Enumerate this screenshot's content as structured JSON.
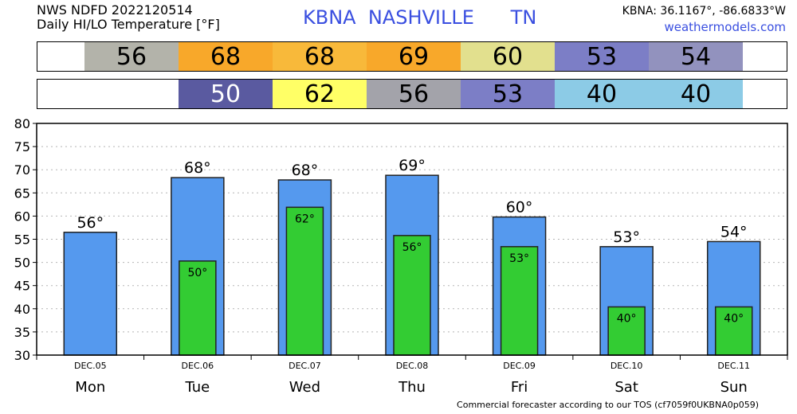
{
  "header": {
    "line1": "NWS NDFD 2022120514",
    "line2": "Daily HI/LO Temperature [°F]",
    "station": "KBNA  NASHVILLE      TN",
    "coords": "KBNA: 36.1167°, -86.6833°W",
    "site": "weathermodels.com"
  },
  "strips": {
    "hi": [
      {
        "value": "56",
        "color": "#b3b3aa",
        "text_color": "#000000"
      },
      {
        "value": "68",
        "color": "#f8a82a",
        "text_color": "#000000"
      },
      {
        "value": "68",
        "color": "#f8b93a",
        "text_color": "#000000"
      },
      {
        "value": "69",
        "color": "#f8a82a",
        "text_color": "#000000"
      },
      {
        "value": "60",
        "color": "#e2e08e",
        "text_color": "#000000"
      },
      {
        "value": "53",
        "color": "#7c7ec6",
        "text_color": "#000000"
      },
      {
        "value": "54",
        "color": "#9292be",
        "text_color": "#000000"
      }
    ],
    "lo": [
      {
        "value": "",
        "color": "#ffffff",
        "text_color": "#000000"
      },
      {
        "value": "50",
        "color": "#5a5aa0",
        "text_color": "#ffffff"
      },
      {
        "value": "62",
        "color": "#ffff66",
        "text_color": "#000000"
      },
      {
        "value": "56",
        "color": "#a3a3aa",
        "text_color": "#000000"
      },
      {
        "value": "53",
        "color": "#7c7ec6",
        "text_color": "#000000"
      },
      {
        "value": "40",
        "color": "#8ccbe6",
        "text_color": "#000000"
      },
      {
        "value": "40",
        "color": "#8ccbe6",
        "text_color": "#000000"
      }
    ]
  },
  "chart_data": {
    "type": "bar",
    "dates": [
      "DEC.05",
      "DEC.06",
      "DEC.07",
      "DEC.08",
      "DEC.09",
      "DEC.10",
      "DEC.11"
    ],
    "days": [
      "Mon",
      "Tue",
      "Wed",
      "Thu",
      "Fri",
      "Sat",
      "Sun"
    ],
    "series": [
      {
        "values": [
          56.5,
          68.3,
          67.8,
          68.8,
          59.8,
          53.4,
          54.5
        ],
        "labels": [
          "56°",
          "68°",
          "68°",
          "69°",
          "60°",
          "53°",
          "54°"
        ],
        "color": "#5599ee"
      },
      {
        "values": [
          null,
          50.3,
          61.9,
          55.8,
          53.4,
          40.4,
          40.4
        ],
        "labels": [
          "",
          "50°",
          "62°",
          "56°",
          "53°",
          "40°",
          "40°"
        ],
        "color": "#33cc33"
      }
    ],
    "yticks": [
      "30",
      "35",
      "40",
      "45",
      "50",
      "55",
      "60",
      "65",
      "70",
      "75",
      "80"
    ],
    "ylim": [
      30,
      80
    ],
    "grid": true
  },
  "footer": "Commercial forecaster according to our TOS (cf7059f0UKBNA0p059)"
}
